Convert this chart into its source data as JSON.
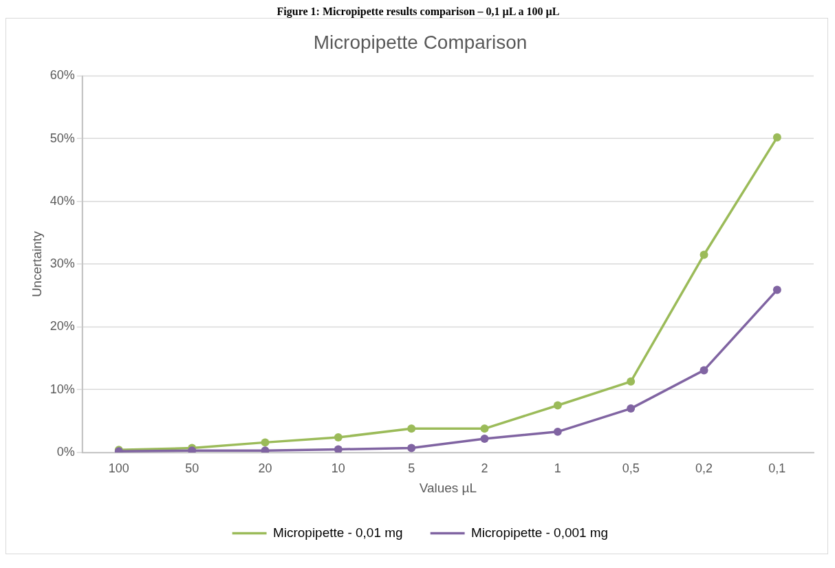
{
  "chart_data": {
    "type": "line",
    "title": "Micropipette Comparison",
    "annotations": [
      "Figure 1: Micropipette results comparison – 0,1 µL a 100 µL"
    ],
    "xlabel": "Values µL",
    "ylabel": "Uncertainty",
    "categories": [
      "100",
      "50",
      "20",
      "10",
      "5",
      "2",
      "1",
      "0,5",
      "0,2",
      "0,1"
    ],
    "series": [
      {
        "name": "Micropipette - 0,01 mg",
        "color": "#9bbb59",
        "values": [
          0.4,
          0.7,
          1.6,
          2.4,
          3.8,
          3.8,
          7.5,
          11.3,
          31.5,
          50.2
        ]
      },
      {
        "name": "Micropipette - 0,001 mg",
        "color": "#8064a2",
        "values": [
          0.2,
          0.3,
          0.3,
          0.5,
          0.7,
          2.2,
          3.3,
          7.0,
          13.1,
          25.9
        ]
      }
    ],
    "ylim": [
      0,
      60
    ],
    "yticks": [
      {
        "value": 0,
        "label": "0%"
      },
      {
        "value": 10,
        "label": "10%"
      },
      {
        "value": 20,
        "label": "20%"
      },
      {
        "value": 30,
        "label": "30%"
      },
      {
        "value": 40,
        "label": "40%"
      },
      {
        "value": 50,
        "label": "50%"
      },
      {
        "value": 60,
        "label": "60%"
      }
    ],
    "grid": "y",
    "legend": "bottom",
    "marker": "circle",
    "line_style": "solid"
  }
}
